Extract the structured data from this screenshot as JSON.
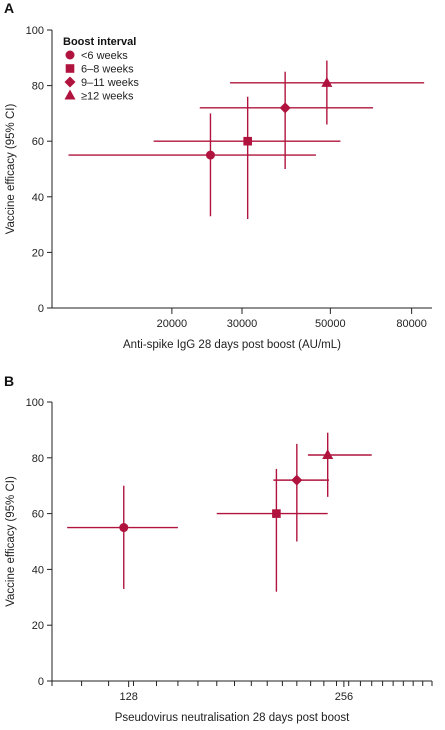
{
  "chart_data": [
    {
      "panel": "A",
      "type": "scatter",
      "xlabel": "Anti-spike IgG 28 days post boost (AU/mL)",
      "ylabel": "Vaccine efficacy (95% CI)",
      "xscale": "log",
      "xlim": [
        10000,
        90000
      ],
      "ylim": [
        0,
        100
      ],
      "xticks": [
        20000,
        30000,
        50000,
        80000
      ],
      "xtick_labels": [
        "20000",
        "30000",
        "50000",
        "80000"
      ],
      "yticks": [
        0,
        20,
        40,
        60,
        80,
        100
      ],
      "ytick_labels": [
        "0",
        "20",
        "40",
        "60",
        "80",
        "100"
      ],
      "legend": {
        "title": "Boost interval",
        "placement": "top-left",
        "entries": [
          {
            "label": "<6 weeks",
            "marker": "circle"
          },
          {
            "label": "6–8 weeks",
            "marker": "square"
          },
          {
            "label": "9–11 weeks",
            "marker": "diamond"
          },
          {
            "label": "≥12 weeks",
            "marker": "triangle"
          }
        ]
      },
      "points": [
        {
          "group": "<6 weeks",
          "marker": "circle",
          "x": 25000,
          "x_low": 11000,
          "x_high": 46000,
          "y": 55,
          "y_low": 33,
          "y_high": 70
        },
        {
          "group": "6–8 weeks",
          "marker": "square",
          "x": 31000,
          "x_low": 18000,
          "x_high": 53000,
          "y": 60,
          "y_low": 32,
          "y_high": 76
        },
        {
          "group": "9–11 weeks",
          "marker": "diamond",
          "x": 38500,
          "x_low": 23500,
          "x_high": 64000,
          "y": 72,
          "y_low": 50,
          "y_high": 85
        },
        {
          "group": "≥12 weeks",
          "marker": "triangle",
          "x": 49000,
          "x_low": 28000,
          "x_high": 86000,
          "y": 81,
          "y_low": 66,
          "y_high": 89
        }
      ]
    },
    {
      "panel": "B",
      "type": "scatter",
      "xlabel": "Pseudovirus neutralisation 28 days post boost",
      "ylabel": "Vaccine efficacy (95% CI)",
      "xscale": "log2",
      "xlim": [
        100,
        340
      ],
      "ylim": [
        0,
        100
      ],
      "xticks": [
        128,
        256
      ],
      "xtick_labels": [
        "128",
        "256"
      ],
      "minor_xticks": [
        100,
        110,
        120,
        130,
        140,
        150,
        160,
        170,
        180,
        190,
        200,
        210,
        220,
        230,
        240,
        250,
        260,
        270,
        280,
        290,
        300,
        310,
        320,
        330,
        340
      ],
      "yticks": [
        0,
        20,
        40,
        60,
        80,
        100
      ],
      "ytick_labels": [
        "0",
        "20",
        "40",
        "60",
        "80",
        "100"
      ],
      "points": [
        {
          "group": "<6 weeks",
          "marker": "circle",
          "x": 126,
          "x_low": 105,
          "x_high": 150,
          "y": 55,
          "y_low": 33,
          "y_high": 70
        },
        {
          "group": "6–8 weeks",
          "marker": "square",
          "x": 206,
          "x_low": 170,
          "x_high": 243,
          "y": 60,
          "y_low": 32,
          "y_high": 76
        },
        {
          "group": "9–11 weeks",
          "marker": "diamond",
          "x": 220,
          "x_low": 204,
          "x_high": 244,
          "y": 72,
          "y_low": 50,
          "y_high": 85
        },
        {
          "group": "≥12 weeks",
          "marker": "triangle",
          "x": 243,
          "x_low": 228,
          "x_high": 280,
          "y": 81,
          "y_low": 66,
          "y_high": 89
        }
      ]
    }
  ],
  "style": {
    "accent": "#b0143e",
    "axis_color": "#222222"
  }
}
